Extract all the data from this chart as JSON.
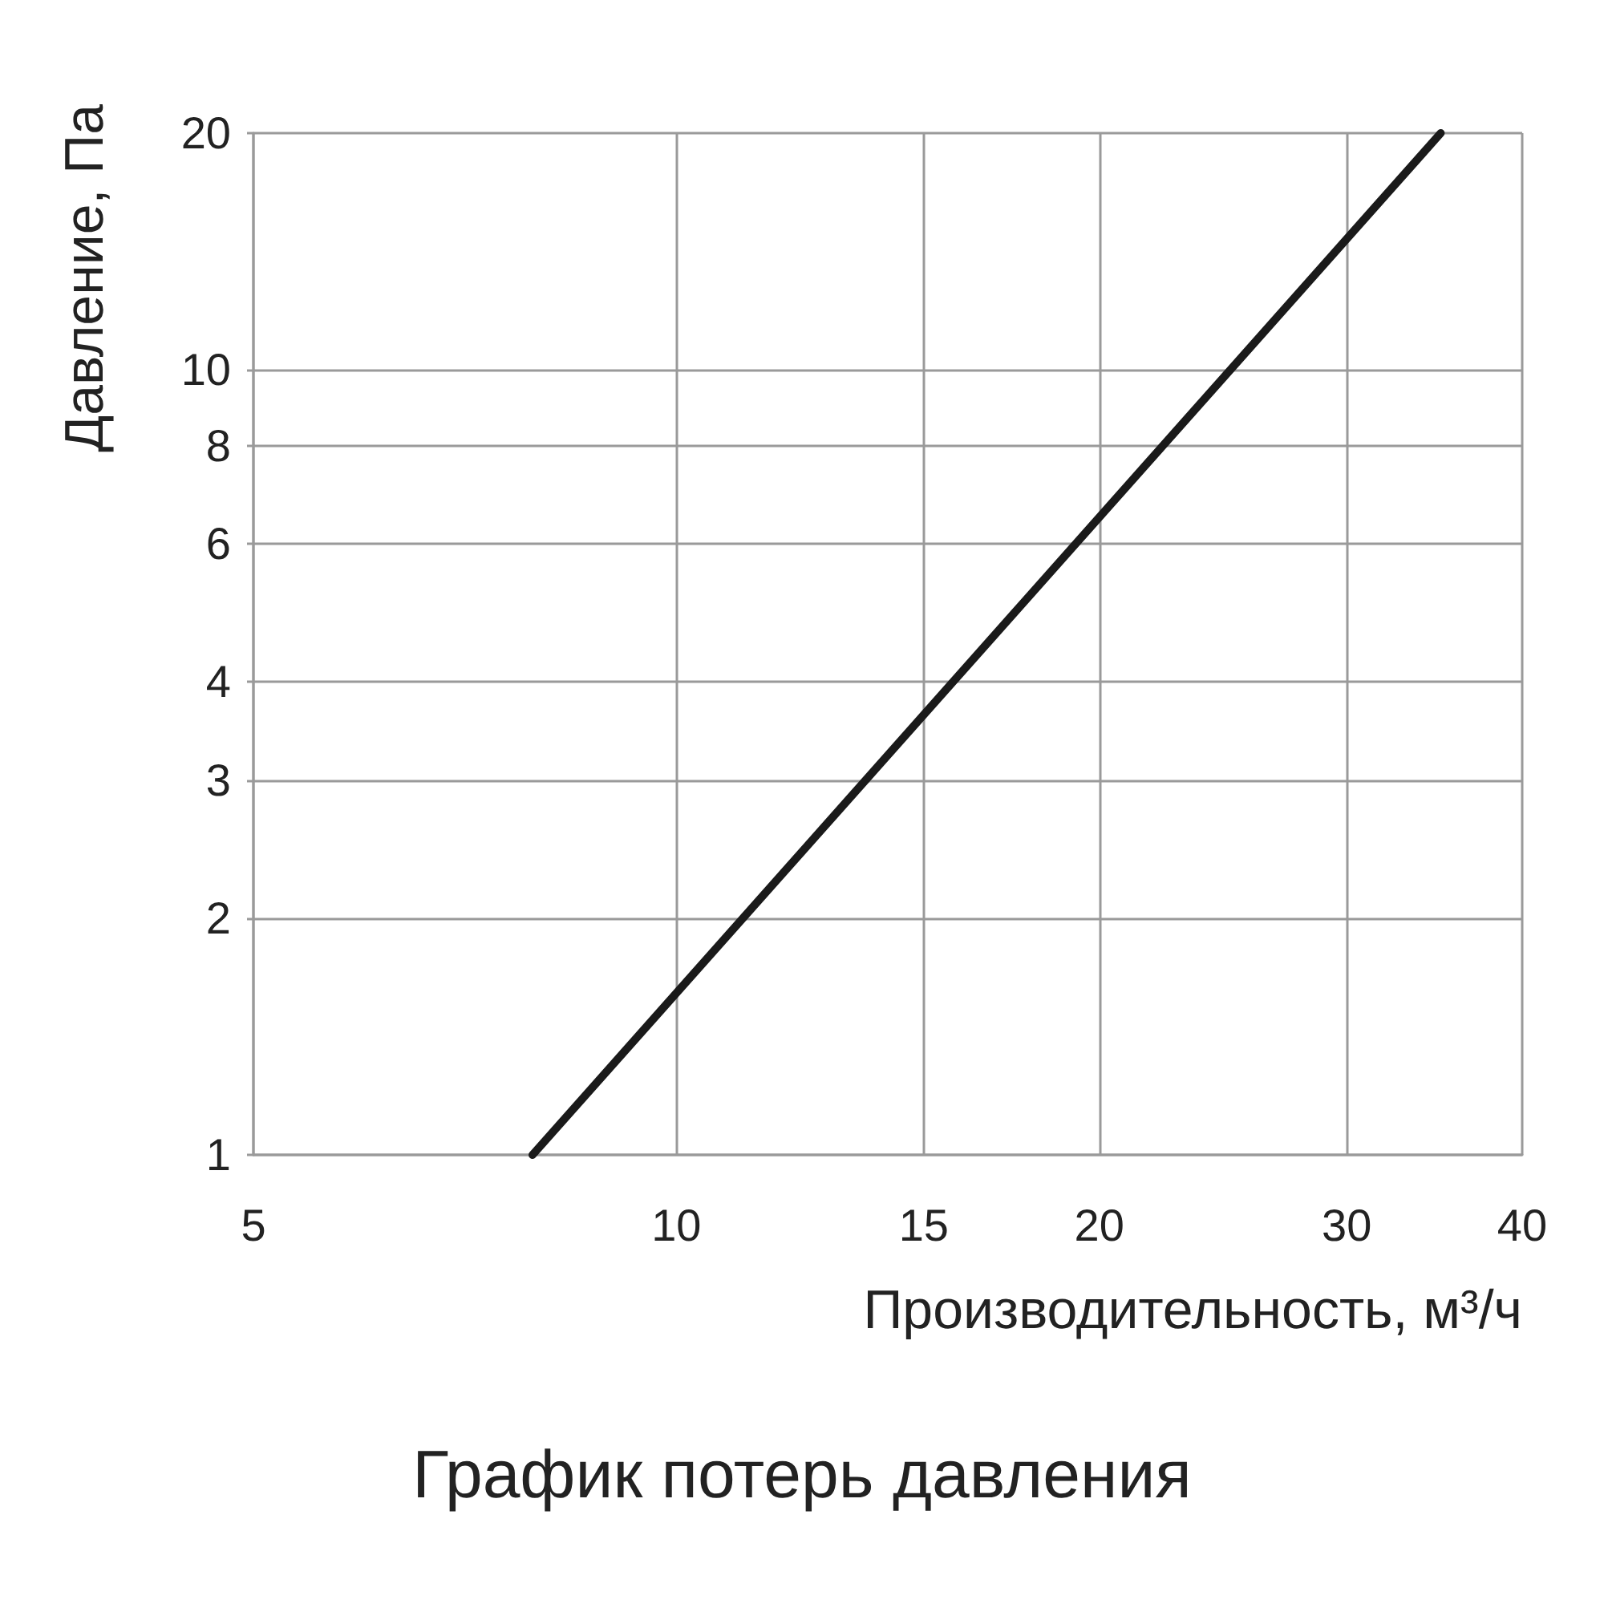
{
  "chart_data": {
    "type": "line",
    "title": "График потерь давления",
    "xlabel": "Производительность, м³/ч",
    "ylabel": "Давление, Па",
    "x": [
      7.9,
      35
    ],
    "series": [
      {
        "color": "#1a1a1a",
        "values": [
          1,
          20
        ]
      }
    ],
    "log": "xy",
    "xlim": [
      5,
      40
    ],
    "xticks": [
      5,
      10,
      15,
      20,
      30,
      40
    ],
    "ylim": [
      1,
      20
    ],
    "yticks": [
      1,
      2,
      3,
      4,
      6,
      8,
      10,
      20
    ],
    "grid": true
  }
}
